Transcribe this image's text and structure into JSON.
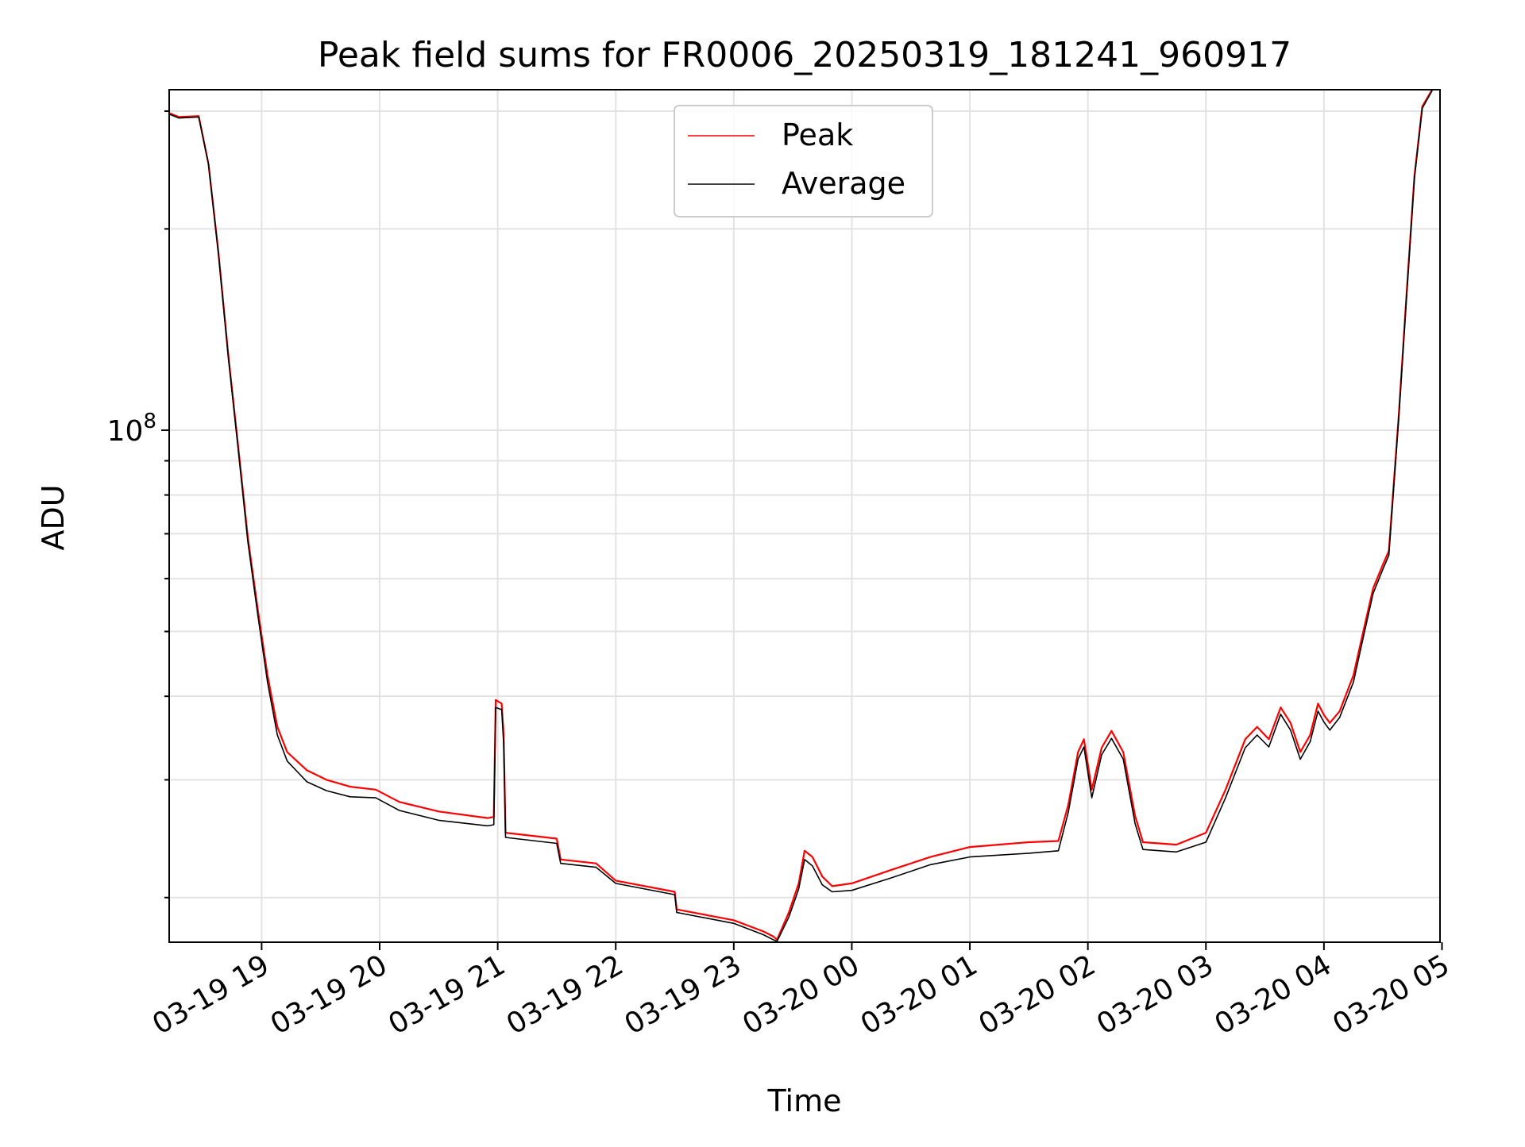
{
  "colors": {
    "peak": "#ff0000",
    "average": "#000000",
    "grid": "#e3e3e3",
    "background": "#ffffff"
  },
  "chart_data": {
    "type": "line",
    "title": "Peak field sums for FR0006_20250319_181241_960917",
    "xlabel": "Time",
    "ylabel": "ADU",
    "yscale": "log",
    "grid": true,
    "legend_position": "top-center",
    "xlim": [
      "2025-03-19 18:13",
      "2025-03-20 04:59"
    ],
    "ylim": [
      17150000,
      323000000
    ],
    "x_tick_labels": [
      "03-19 19",
      "03-19 20",
      "03-19 21",
      "03-19 22",
      "03-19 23",
      "03-20 00",
      "03-20 01",
      "03-20 02",
      "03-20 03",
      "03-20 04",
      "03-20 05"
    ],
    "y_tick_major_label": {
      "base": "10",
      "exponent": "8",
      "value": 100000000
    },
    "series": [
      {
        "name": "Peak",
        "color": "#ff0000",
        "points": [
          [
            "2025-03-19 18:13",
            298000000
          ],
          [
            "2025-03-19 18:18",
            294000000
          ],
          [
            "2025-03-19 18:28",
            295000000
          ],
          [
            "2025-03-19 18:33",
            250000000
          ],
          [
            "2025-03-19 18:38",
            185000000
          ],
          [
            "2025-03-19 18:43",
            130000000
          ],
          [
            "2025-03-19 18:48",
            95000000
          ],
          [
            "2025-03-19 18:53",
            69000000
          ],
          [
            "2025-03-19 18:58",
            54000000
          ],
          [
            "2025-03-19 19:03",
            43000000
          ],
          [
            "2025-03-19 19:08",
            36000000
          ],
          [
            "2025-03-19 19:13",
            33000000
          ],
          [
            "2025-03-19 19:23",
            31000000
          ],
          [
            "2025-03-19 19:33",
            30000000
          ],
          [
            "2025-03-19 19:45",
            29300000
          ],
          [
            "2025-03-19 19:58",
            29000000
          ],
          [
            "2025-03-19 20:10",
            27800000
          ],
          [
            "2025-03-19 20:30",
            26900000
          ],
          [
            "2025-03-19 20:55",
            26300000
          ],
          [
            "2025-03-19 20:58",
            26400000
          ],
          [
            "2025-03-19 20:59",
            39500000
          ],
          [
            "2025-03-19 21:02",
            39000000
          ],
          [
            "2025-03-19 21:03",
            35000000
          ],
          [
            "2025-03-19 21:04",
            25000000
          ],
          [
            "2025-03-19 21:30",
            24500000
          ],
          [
            "2025-03-19 21:32",
            22800000
          ],
          [
            "2025-03-19 21:50",
            22500000
          ],
          [
            "2025-03-19 22:00",
            21200000
          ],
          [
            "2025-03-19 22:30",
            20400000
          ],
          [
            "2025-03-19 22:31",
            19200000
          ],
          [
            "2025-03-19 23:00",
            18500000
          ],
          [
            "2025-03-19 23:15",
            17800000
          ],
          [
            "2025-03-19 23:20",
            17500000
          ],
          [
            "2025-03-19 23:22",
            17300000
          ],
          [
            "2025-03-19 23:28",
            19000000
          ],
          [
            "2025-03-19 23:33",
            21000000
          ],
          [
            "2025-03-19 23:36",
            23500000
          ],
          [
            "2025-03-19 23:40",
            23000000
          ],
          [
            "2025-03-19 23:45",
            21500000
          ],
          [
            "2025-03-19 23:50",
            20800000
          ],
          [
            "2025-03-20 00:00",
            21000000
          ],
          [
            "2025-03-20 00:20",
            22000000
          ],
          [
            "2025-03-20 00:40",
            23000000
          ],
          [
            "2025-03-20 01:00",
            23800000
          ],
          [
            "2025-03-20 01:30",
            24200000
          ],
          [
            "2025-03-20 01:45",
            24300000
          ],
          [
            "2025-03-20 01:50",
            27500000
          ],
          [
            "2025-03-20 01:55",
            33000000
          ],
          [
            "2025-03-20 01:58",
            34500000
          ],
          [
            "2025-03-20 02:02",
            29000000
          ],
          [
            "2025-03-20 02:07",
            33500000
          ],
          [
            "2025-03-20 02:12",
            35500000
          ],
          [
            "2025-03-20 02:18",
            33000000
          ],
          [
            "2025-03-20 02:24",
            26500000
          ],
          [
            "2025-03-20 02:28",
            24200000
          ],
          [
            "2025-03-20 02:45",
            24000000
          ],
          [
            "2025-03-20 03:00",
            25000000
          ],
          [
            "2025-03-20 03:10",
            29000000
          ],
          [
            "2025-03-20 03:20",
            34500000
          ],
          [
            "2025-03-20 03:26",
            36000000
          ],
          [
            "2025-03-20 03:32",
            34500000
          ],
          [
            "2025-03-20 03:38",
            38500000
          ],
          [
            "2025-03-20 03:43",
            36500000
          ],
          [
            "2025-03-20 03:48",
            33000000
          ],
          [
            "2025-03-20 03:53",
            35000000
          ],
          [
            "2025-03-20 03:57",
            39000000
          ],
          [
            "2025-03-20 04:00",
            37500000
          ],
          [
            "2025-03-20 04:03",
            36500000
          ],
          [
            "2025-03-20 04:08",
            38000000
          ],
          [
            "2025-03-20 04:15",
            43000000
          ],
          [
            "2025-03-20 04:20",
            50000000
          ],
          [
            "2025-03-20 04:25",
            58000000
          ],
          [
            "2025-03-20 04:30",
            63000000
          ],
          [
            "2025-03-20 04:33",
            66000000
          ],
          [
            "2025-03-20 04:38",
            105000000
          ],
          [
            "2025-03-20 04:42",
            160000000
          ],
          [
            "2025-03-20 04:46",
            240000000
          ],
          [
            "2025-03-20 04:50",
            305000000
          ],
          [
            "2025-03-20 04:55",
            323000000
          ]
        ]
      },
      {
        "name": "Average",
        "color": "#000000",
        "points": [
          [
            "2025-03-19 18:13",
            297000000
          ],
          [
            "2025-03-19 18:18",
            293000000
          ],
          [
            "2025-03-19 18:28",
            294000000
          ],
          [
            "2025-03-19 18:33",
            250000000
          ],
          [
            "2025-03-19 18:38",
            184000000
          ],
          [
            "2025-03-19 18:43",
            129000000
          ],
          [
            "2025-03-19 18:48",
            94000000
          ],
          [
            "2025-03-19 18:53",
            68000000
          ],
          [
            "2025-03-19 18:58",
            53000000
          ],
          [
            "2025-03-19 19:03",
            42000000
          ],
          [
            "2025-03-19 19:08",
            35000000
          ],
          [
            "2025-03-19 19:13",
            32000000
          ],
          [
            "2025-03-19 19:23",
            29800000
          ],
          [
            "2025-03-19 19:33",
            28900000
          ],
          [
            "2025-03-19 19:45",
            28300000
          ],
          [
            "2025-03-19 19:58",
            28200000
          ],
          [
            "2025-03-19 20:10",
            27000000
          ],
          [
            "2025-03-19 20:30",
            26100000
          ],
          [
            "2025-03-19 20:55",
            25600000
          ],
          [
            "2025-03-19 20:58",
            25700000
          ],
          [
            "2025-03-19 20:59",
            38500000
          ],
          [
            "2025-03-19 21:02",
            38200000
          ],
          [
            "2025-03-19 21:03",
            34000000
          ],
          [
            "2025-03-19 21:04",
            24600000
          ],
          [
            "2025-03-19 21:30",
            24100000
          ],
          [
            "2025-03-19 21:32",
            22500000
          ],
          [
            "2025-03-19 21:50",
            22200000
          ],
          [
            "2025-03-19 22:00",
            21000000
          ],
          [
            "2025-03-19 22:30",
            20200000
          ],
          [
            "2025-03-19 22:31",
            19000000
          ],
          [
            "2025-03-19 23:00",
            18300000
          ],
          [
            "2025-03-19 23:15",
            17600000
          ],
          [
            "2025-03-19 23:20",
            17300000
          ],
          [
            "2025-03-19 23:22",
            17200000
          ],
          [
            "2025-03-19 23:28",
            18700000
          ],
          [
            "2025-03-19 23:33",
            20600000
          ],
          [
            "2025-03-19 23:36",
            22800000
          ],
          [
            "2025-03-19 23:40",
            22300000
          ],
          [
            "2025-03-19 23:45",
            20900000
          ],
          [
            "2025-03-19 23:50",
            20400000
          ],
          [
            "2025-03-20 00:00",
            20500000
          ],
          [
            "2025-03-20 00:20",
            21400000
          ],
          [
            "2025-03-20 00:40",
            22400000
          ],
          [
            "2025-03-20 01:00",
            23000000
          ],
          [
            "2025-03-20 01:30",
            23300000
          ],
          [
            "2025-03-20 01:45",
            23500000
          ],
          [
            "2025-03-20 01:50",
            26800000
          ],
          [
            "2025-03-20 01:55",
            32200000
          ],
          [
            "2025-03-20 01:58",
            33600000
          ],
          [
            "2025-03-20 02:02",
            28200000
          ],
          [
            "2025-03-20 02:07",
            32700000
          ],
          [
            "2025-03-20 02:12",
            34600000
          ],
          [
            "2025-03-20 02:18",
            32200000
          ],
          [
            "2025-03-20 02:24",
            25800000
          ],
          [
            "2025-03-20 02:28",
            23600000
          ],
          [
            "2025-03-20 02:45",
            23400000
          ],
          [
            "2025-03-20 03:00",
            24200000
          ],
          [
            "2025-03-20 03:10",
            28200000
          ],
          [
            "2025-03-20 03:20",
            33500000
          ],
          [
            "2025-03-20 03:26",
            35000000
          ],
          [
            "2025-03-20 03:32",
            33600000
          ],
          [
            "2025-03-20 03:38",
            37600000
          ],
          [
            "2025-03-20 03:43",
            35600000
          ],
          [
            "2025-03-20 03:48",
            32200000
          ],
          [
            "2025-03-20 03:53",
            34200000
          ],
          [
            "2025-03-20 03:57",
            38000000
          ],
          [
            "2025-03-20 04:00",
            36600000
          ],
          [
            "2025-03-20 04:03",
            35600000
          ],
          [
            "2025-03-20 04:08",
            37200000
          ],
          [
            "2025-03-20 04:15",
            42000000
          ],
          [
            "2025-03-20 04:20",
            49000000
          ],
          [
            "2025-03-20 04:25",
            57000000
          ],
          [
            "2025-03-20 04:30",
            62000000
          ],
          [
            "2025-03-20 04:33",
            65000000
          ],
          [
            "2025-03-20 04:38",
            104000000
          ],
          [
            "2025-03-20 04:42",
            158000000
          ],
          [
            "2025-03-20 04:46",
            238000000
          ],
          [
            "2025-03-20 04:50",
            303000000
          ],
          [
            "2025-03-20 04:55",
            322000000
          ]
        ]
      }
    ]
  }
}
